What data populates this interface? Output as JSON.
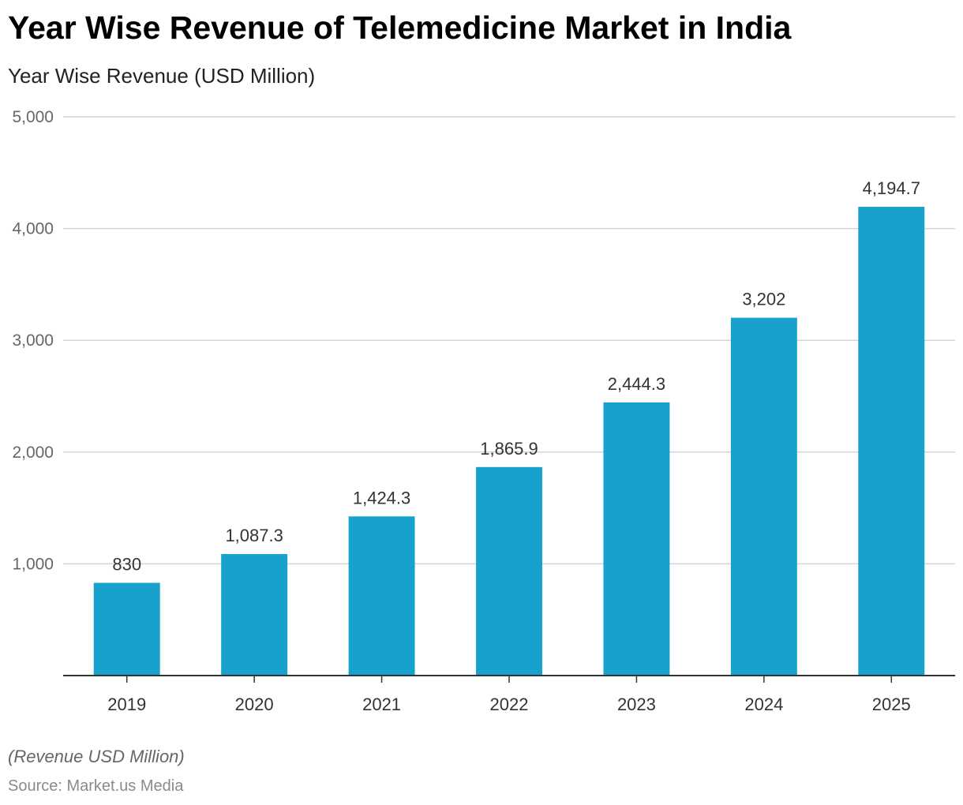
{
  "chart_data": {
    "type": "bar",
    "title": "Year Wise Revenue of Telemedicine Market in India",
    "subtitle": "Year Wise Revenue (USD Million)",
    "categories": [
      "2019",
      "2020",
      "2021",
      "2022",
      "2023",
      "2024",
      "2025"
    ],
    "values": [
      830,
      1087.3,
      1424.3,
      1865.9,
      2444.3,
      3202,
      4194.7
    ],
    "value_labels": [
      "830",
      "1,087.3",
      "1,424.3",
      "1,865.9",
      "2,444.3",
      "3,202",
      "4,194.7"
    ],
    "ylim": [
      0,
      5000
    ],
    "yticks": [
      1000,
      2000,
      3000,
      4000,
      5000
    ],
    "ytick_labels": [
      "1,000",
      "2,000",
      "3,000",
      "4,000",
      "5,000"
    ],
    "grid": true,
    "legend": "none",
    "bar_color": "#19a1ce",
    "footnote": "(Revenue USD Million)",
    "source": "Source: Market.us Media"
  }
}
